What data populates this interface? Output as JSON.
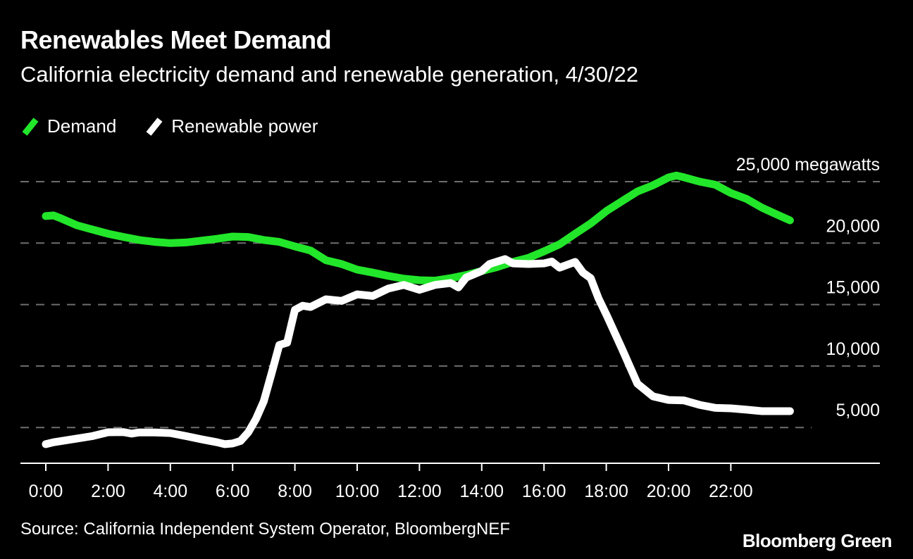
{
  "header": {
    "title": "Renewables Meet Demand",
    "subtitle": "California electricity demand and renewable generation, 4/30/22"
  },
  "legend": [
    {
      "label": "Demand",
      "color": "#22e62a"
    },
    {
      "label": "Renewable power",
      "color": "#ffffff"
    }
  ],
  "footer": {
    "source": "Source: California Independent System Operator, BloombergNEF",
    "brand": "Bloomberg Green"
  },
  "chart_data": {
    "type": "line",
    "title": "Renewables Meet Demand",
    "subtitle": "California electricity demand and renewable generation, 4/30/22",
    "xlabel": "",
    "ylabel": "megawatts",
    "x_unit": "hour of day",
    "xlim": [
      0,
      24
    ],
    "ylim": [
      2000,
      25000
    ],
    "grid": true,
    "legend_position": "top-left",
    "y_ticks": [
      5000,
      10000,
      15000,
      20000,
      25000
    ],
    "y_tick_labels": [
      "5,000",
      "10,000",
      "15,000",
      "20,000",
      "25,000 megawatts"
    ],
    "x_ticks": [
      0,
      2,
      4,
      6,
      8,
      10,
      12,
      14,
      16,
      18,
      20,
      22
    ],
    "x_tick_labels": [
      "0:00",
      "2:00",
      "4:00",
      "6:00",
      "8:00",
      "10:00",
      "12:00",
      "14:00",
      "16:00",
      "18:00",
      "20:00",
      "22:00"
    ],
    "series": [
      {
        "name": "Demand",
        "color": "#22e62a",
        "x": [
          0,
          0.25,
          0.5,
          1,
          1.5,
          2,
          2.5,
          3,
          3.5,
          4,
          4.5,
          5,
          5.5,
          6,
          6.5,
          7,
          7.5,
          8,
          8.5,
          9,
          9.5,
          10,
          10.5,
          11,
          11.5,
          12,
          12.5,
          13,
          13.5,
          14,
          14.5,
          15,
          15.5,
          16,
          16.5,
          17,
          17.5,
          18,
          18.5,
          19,
          19.5,
          20,
          20.25,
          20.5,
          21,
          21.5,
          22,
          22.5,
          23,
          23.5,
          23.9
        ],
        "values": [
          22200,
          22250,
          22000,
          21450,
          21100,
          20760,
          20500,
          20250,
          20100,
          20000,
          20050,
          20200,
          20350,
          20530,
          20500,
          20250,
          20100,
          19730,
          19400,
          18600,
          18300,
          17840,
          17600,
          17330,
          17100,
          16980,
          16950,
          17150,
          17400,
          17730,
          18050,
          18470,
          18800,
          19330,
          19900,
          20760,
          21600,
          22600,
          23400,
          24200,
          24700,
          25340,
          25500,
          25350,
          25000,
          24750,
          24080,
          23600,
          22880,
          22300,
          21850
        ]
      },
      {
        "name": "Renewable power",
        "color": "#ffffff",
        "x": [
          0,
          0.25,
          0.5,
          1,
          1.5,
          2,
          2.5,
          2.75,
          3,
          3.5,
          4,
          4.5,
          5,
          5.5,
          5.75,
          6,
          6.25,
          6.5,
          6.75,
          7,
          7.25,
          7.5,
          7.75,
          8,
          8.25,
          8.5,
          9,
          9.5,
          10,
          10.5,
          11,
          11.5,
          12,
          12.5,
          13,
          13.25,
          13.5,
          14,
          14.25,
          14.5,
          14.75,
          15,
          15.5,
          16,
          16.25,
          16.5,
          17,
          17.25,
          17.5,
          17.75,
          18,
          18.5,
          19,
          19.5,
          20,
          20.5,
          21,
          21.5,
          22,
          22.5,
          23,
          23.5,
          23.9
        ],
        "values": [
          3640,
          3800,
          3900,
          4100,
          4300,
          4610,
          4620,
          4500,
          4600,
          4600,
          4550,
          4300,
          4040,
          3800,
          3640,
          3700,
          3900,
          4600,
          5700,
          7130,
          9400,
          11710,
          11900,
          14570,
          14900,
          14800,
          15430,
          15300,
          15830,
          15700,
          16300,
          16600,
          16200,
          16600,
          16750,
          16400,
          17200,
          17730,
          18300,
          18500,
          18700,
          18350,
          18300,
          18350,
          18500,
          18000,
          18470,
          17600,
          17150,
          15500,
          14200,
          11430,
          8560,
          7530,
          7240,
          7200,
          6840,
          6600,
          6560,
          6450,
          6330,
          6330,
          6330
        ]
      }
    ]
  }
}
